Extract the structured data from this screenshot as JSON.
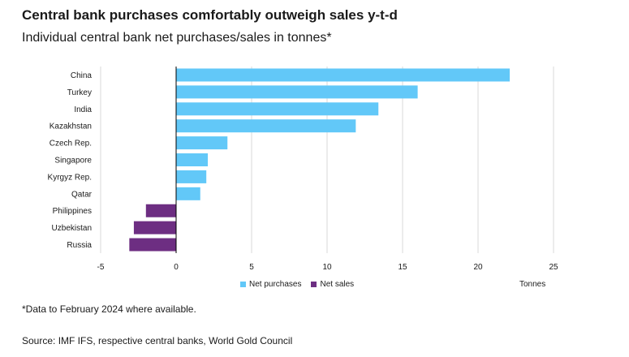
{
  "header": {
    "title": "Central bank purchases comfortably outweigh sales y-t-d",
    "subtitle": "Individual central bank net purchases/sales in tonnes*"
  },
  "legend": {
    "purchases_label": "Net purchases",
    "sales_label": "Net sales"
  },
  "units_label": "Tonnes",
  "footnote": "*Data to February 2024 where available.",
  "source": "Source: IMF IFS, respective central banks, World Gold Council",
  "colors": {
    "purchases": "#62c8f8",
    "sales": "#6d2e82",
    "grid": "#d9d9d9",
    "axis": "#000000"
  },
  "chart_data": {
    "type": "bar",
    "orientation": "horizontal",
    "title": "Central bank purchases comfortably outweigh sales y-t-d",
    "subtitle": "Individual central bank net purchases/sales in tonnes*",
    "categories": [
      "China",
      "Turkey",
      "India",
      "Kazakhstan",
      "Czech Rep.",
      "Singapore",
      "Kyrgyz Rep.",
      "Qatar",
      "Philippines",
      "Uzbekistan",
      "Russia"
    ],
    "values": [
      22.1,
      16.0,
      13.4,
      11.9,
      3.4,
      2.1,
      2.0,
      1.6,
      -2.0,
      -2.8,
      -3.1
    ],
    "series": [
      {
        "name": "Net purchases",
        "values": [
          22.1,
          16.0,
          13.4,
          11.9,
          3.4,
          2.1,
          2.0,
          1.6,
          null,
          null,
          null
        ]
      },
      {
        "name": "Net sales",
        "values": [
          null,
          null,
          null,
          null,
          null,
          null,
          null,
          null,
          -2.0,
          -2.8,
          -3.1
        ]
      }
    ],
    "xlabel": "Tonnes",
    "ylabel": "",
    "xlim": [
      -5,
      25
    ],
    "xticks": [
      -5,
      0,
      5,
      10,
      15,
      20,
      25
    ],
    "grid": "vertical",
    "legend": "bottom-center"
  }
}
